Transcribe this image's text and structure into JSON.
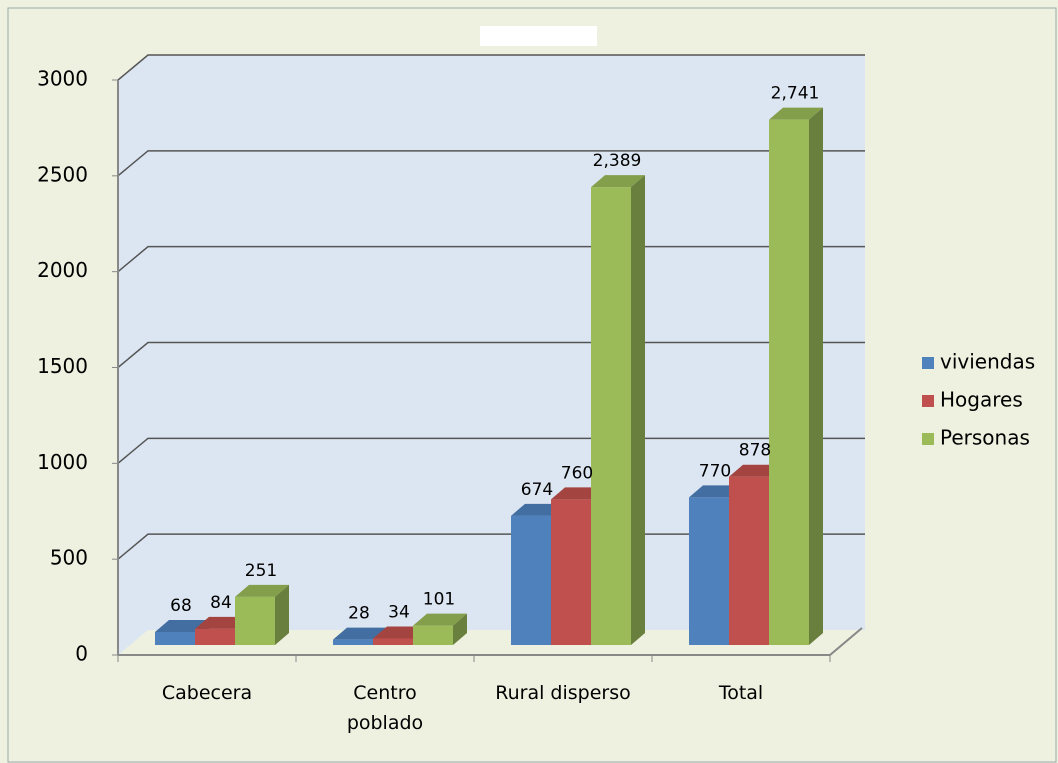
{
  "chart_data": {
    "type": "bar3d",
    "categories": [
      "Cabecera",
      "Centro poblado",
      "Rural disperso",
      "Total"
    ],
    "series": [
      {
        "name": "viviendas",
        "color": "#4f81bd",
        "values": [
          68,
          28,
          674,
          770
        ]
      },
      {
        "name": "Hogares",
        "color": "#c0504d",
        "values": [
          84,
          34,
          760,
          878
        ]
      },
      {
        "name": "Personas",
        "color": "#9bbb59",
        "values": [
          251,
          101,
          2389,
          2741
        ],
        "value_labels": [
          "251",
          "101",
          "2,389",
          "2,741"
        ]
      }
    ],
    "ylim": [
      0,
      3000
    ],
    "yticks": [
      0,
      500,
      1000,
      1500,
      2000,
      2500,
      3000
    ],
    "grid": true,
    "legend": "right"
  }
}
